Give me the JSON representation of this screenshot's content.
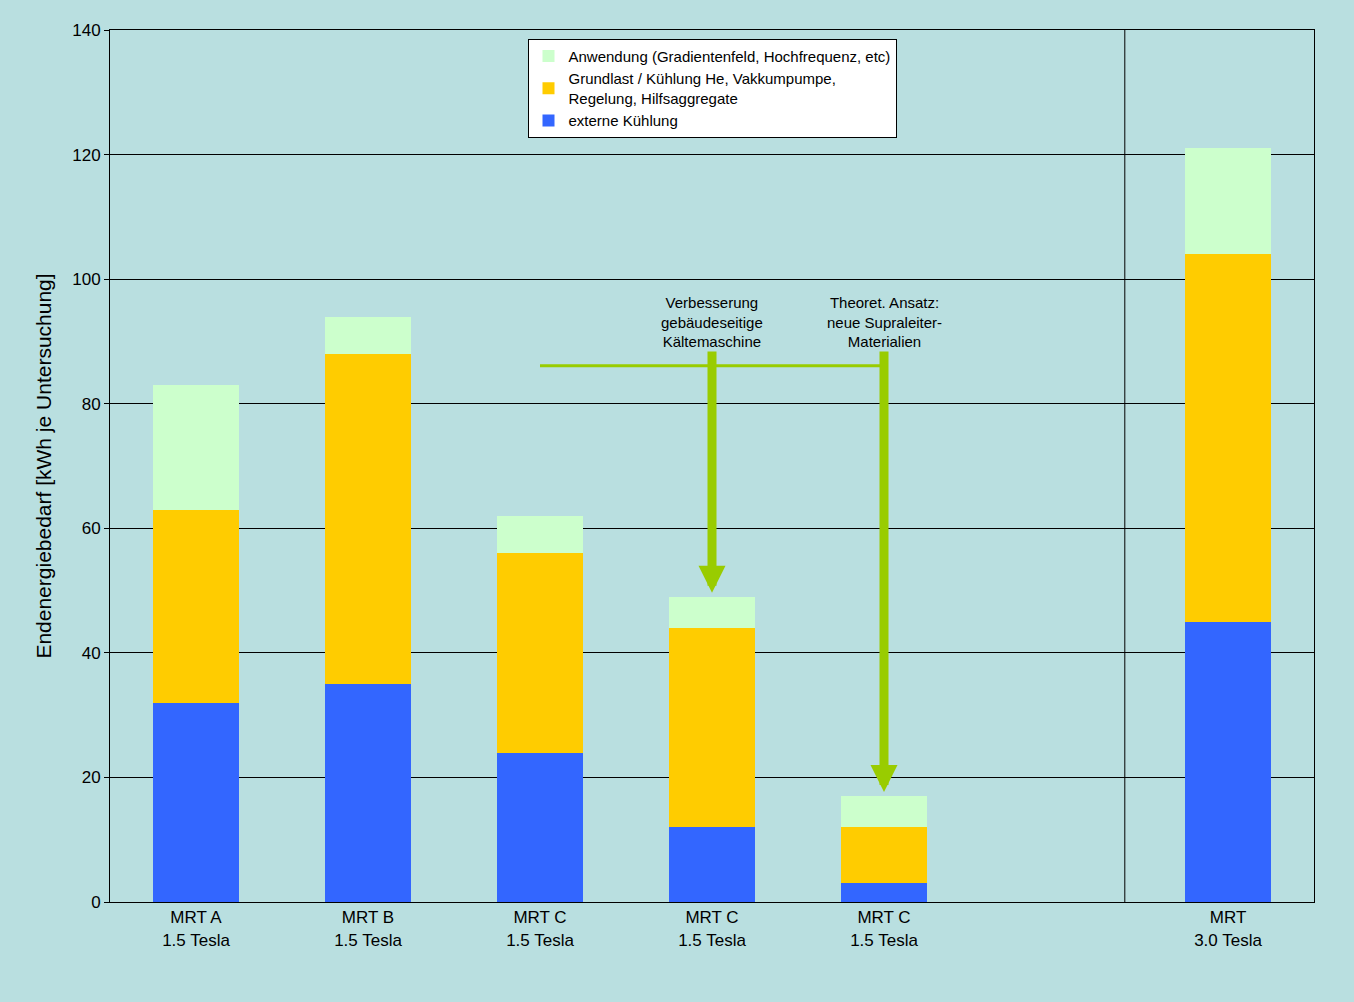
{
  "chart_data": {
    "type": "bar",
    "stacked": true,
    "y_label": "Endenergiebedarf [kWh je Untersuchung]",
    "categories": [
      "MRT A\n1.5 Tesla",
      "MRT B\n1.5 Tesla",
      "MRT C\n1.5 Tesla",
      "MRT C\n1.5 Tesla",
      "MRT C\n1.5 Tesla",
      null,
      "MRT\n3.0 Tesla"
    ],
    "series": [
      {
        "name": "externe Kühlung",
        "color": "#3366ff",
        "values": [
          32,
          35,
          24,
          12,
          3,
          null,
          45
        ]
      },
      {
        "name": "Grundlast / Kühlung He, Vakkumpumpe,\nRegelung, Hilfsaggregate",
        "color": "#ffcc00",
        "values": [
          31,
          53,
          32,
          32,
          9,
          null,
          59
        ]
      },
      {
        "name": "Anwendung (Gradientenfeld, Hochfrequenz, etc)",
        "color": "#ccffcc",
        "values": [
          20,
          6,
          6,
          5,
          5,
          null,
          17
        ]
      }
    ],
    "annotations": [
      {
        "text": "Verbesserung\ngebäudeseitige\nKältemaschine",
        "x": 3
      },
      {
        "text": "Theoret. Ansatz:\nneue Supraleiter-\nMaterialien",
        "x": 4
      }
    ],
    "ylim": [
      0,
      140
    ],
    "yticks": [
      0,
      20,
      40,
      60,
      80,
      100,
      120,
      140
    ],
    "grid": true,
    "legend": "top"
  }
}
